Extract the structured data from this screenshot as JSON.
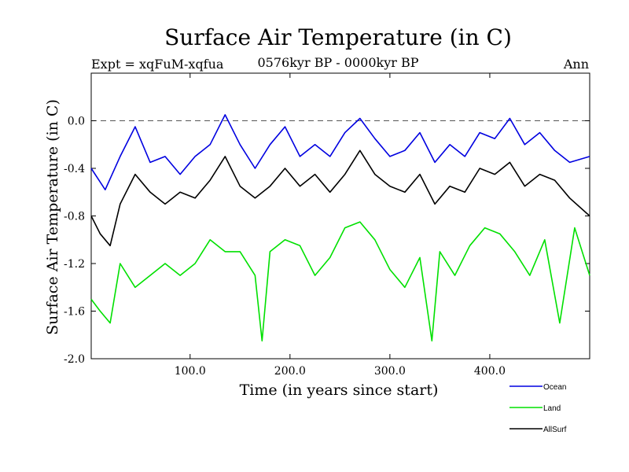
{
  "chart_data": {
    "type": "line",
    "title": "Surface Air Temperature (in C)",
    "subtitle": "0576kyr BP - 0000kyr BP",
    "expt_label": "Expt = xqFuM-xqfua",
    "season_label": "Ann",
    "xlabel": "Time (in years since start)",
    "ylabel": "Surface Air Temperature (in C)",
    "xlim": [
      1,
      500
    ],
    "ylim": [
      -2.0,
      0.4
    ],
    "xticks": [
      100,
      200,
      300,
      400
    ],
    "xtick_labels": [
      "100.0",
      "200.0",
      "300.0",
      "400.0"
    ],
    "yticks": [
      0.0,
      -0.4,
      -0.8,
      -1.2,
      -1.6,
      -2.0
    ],
    "ytick_labels": [
      "0.0",
      "-0.4",
      "-0.8",
      "-1.2",
      "-1.6",
      "-2.0"
    ],
    "reference_line": 0.0,
    "series": [
      {
        "name": "Ocean",
        "color": "#0000e0",
        "x": [
          1,
          15,
          30,
          45,
          60,
          75,
          90,
          105,
          120,
          135,
          150,
          165,
          180,
          195,
          210,
          225,
          240,
          255,
          270,
          285,
          300,
          315,
          330,
          345,
          360,
          375,
          390,
          405,
          420,
          435,
          450,
          465,
          480,
          500
        ],
        "values": [
          -0.4,
          -0.58,
          -0.3,
          -0.05,
          -0.35,
          -0.3,
          -0.45,
          -0.3,
          -0.2,
          0.05,
          -0.2,
          -0.4,
          -0.2,
          -0.05,
          -0.3,
          -0.2,
          -0.3,
          -0.1,
          0.02,
          -0.15,
          -0.3,
          -0.25,
          -0.1,
          -0.35,
          -0.2,
          -0.3,
          -0.1,
          -0.15,
          0.02,
          -0.2,
          -0.1,
          -0.25,
          -0.35,
          -0.3
        ]
      },
      {
        "name": "Land",
        "color": "#00e000",
        "x": [
          1,
          10,
          20,
          30,
          45,
          60,
          75,
          90,
          105,
          120,
          135,
          150,
          165,
          172,
          180,
          195,
          210,
          225,
          240,
          255,
          270,
          285,
          300,
          315,
          330,
          342,
          350,
          365,
          380,
          395,
          410,
          425,
          440,
          455,
          470,
          485,
          500
        ],
        "values": [
          -1.5,
          -1.6,
          -1.7,
          -1.2,
          -1.4,
          -1.3,
          -1.2,
          -1.3,
          -1.2,
          -1.0,
          -1.1,
          -1.1,
          -1.3,
          -1.85,
          -1.1,
          -1.0,
          -1.05,
          -1.3,
          -1.15,
          -0.9,
          -0.85,
          -1.0,
          -1.25,
          -1.4,
          -1.15,
          -1.85,
          -1.1,
          -1.3,
          -1.05,
          -0.9,
          -0.95,
          -1.1,
          -1.3,
          -1.0,
          -1.7,
          -0.9,
          -1.3
        ]
      },
      {
        "name": "AllSurf",
        "color": "#000000",
        "x": [
          1,
          10,
          20,
          30,
          45,
          60,
          75,
          90,
          105,
          120,
          135,
          150,
          165,
          180,
          195,
          210,
          225,
          240,
          255,
          270,
          285,
          300,
          315,
          330,
          345,
          360,
          375,
          390,
          405,
          420,
          435,
          450,
          465,
          480,
          500
        ],
        "values": [
          -0.8,
          -0.95,
          -1.05,
          -0.7,
          -0.45,
          -0.6,
          -0.7,
          -0.6,
          -0.65,
          -0.5,
          -0.3,
          -0.55,
          -0.65,
          -0.55,
          -0.4,
          -0.55,
          -0.45,
          -0.6,
          -0.45,
          -0.25,
          -0.45,
          -0.55,
          -0.6,
          -0.45,
          -0.7,
          -0.55,
          -0.6,
          -0.4,
          -0.45,
          -0.35,
          -0.55,
          -0.45,
          -0.5,
          -0.65,
          -0.8
        ]
      }
    ],
    "legend_position": "bottom-right"
  }
}
